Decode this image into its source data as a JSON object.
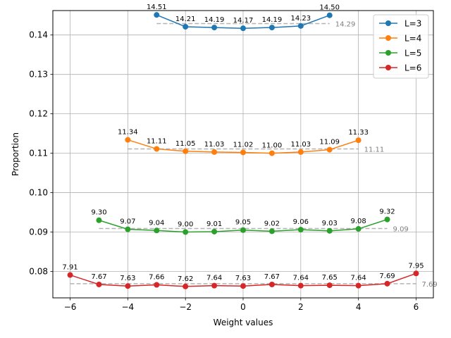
{
  "chart_data": {
    "type": "line",
    "title": "",
    "xlabel": "Weight values",
    "ylabel": "Proportion",
    "xlim": [
      -6.6,
      6.6
    ],
    "ylim": [
      0.0733,
      0.1462
    ],
    "xticks": [
      -6,
      -4,
      -2,
      0,
      2,
      4,
      6
    ],
    "xtick_labels": [
      "−6",
      "−4",
      "−2",
      "0",
      "2",
      "4",
      "6"
    ],
    "yticks": [
      0.08,
      0.09,
      0.1,
      0.11,
      0.12,
      0.13,
      0.14
    ],
    "ytick_labels": [
      "0.08",
      "0.09",
      "0.10",
      "0.11",
      "0.12",
      "0.13",
      "0.14"
    ],
    "grid": true,
    "legend_position": "top-right",
    "series": [
      {
        "name": "L=3",
        "color": "#1f77b4",
        "x": [
          -3,
          -2,
          -1,
          0,
          1,
          2,
          3
        ],
        "y": [
          0.1451,
          0.1421,
          0.1419,
          0.1417,
          0.1419,
          0.1423,
          0.145
        ],
        "point_labels": [
          "14.51",
          "14.21",
          "14.19",
          "14.17",
          "14.19",
          "14.23",
          "14.50"
        ],
        "mean": 0.1429,
        "mean_label": "14.29"
      },
      {
        "name": "L=4",
        "color": "#ff7f0e",
        "x": [
          -4,
          -3,
          -2,
          -1,
          0,
          1,
          2,
          3,
          4
        ],
        "y": [
          0.1134,
          0.1111,
          0.1105,
          0.1103,
          0.1102,
          0.11,
          0.1103,
          0.1109,
          0.1133
        ],
        "point_labels": [
          "11.34",
          "11.11",
          "11.05",
          "11.03",
          "11.02",
          "11.00",
          "11.03",
          "11.09",
          "11.33"
        ],
        "mean": 0.1111,
        "mean_label": "11.11"
      },
      {
        "name": "L=5",
        "color": "#2ca02c",
        "x": [
          -5,
          -4,
          -3,
          -2,
          -1,
          0,
          1,
          2,
          3,
          4,
          5
        ],
        "y": [
          0.093,
          0.0907,
          0.0904,
          0.09,
          0.0901,
          0.0905,
          0.0902,
          0.0906,
          0.0903,
          0.0908,
          0.0932
        ],
        "point_labels": [
          "9.30",
          "9.07",
          "9.04",
          "9.00",
          "9.01",
          "9.05",
          "9.02",
          "9.06",
          "9.03",
          "9.08",
          "9.32"
        ],
        "mean": 0.0909,
        "mean_label": "9.09"
      },
      {
        "name": "L=6",
        "color": "#d62728",
        "x": [
          -6,
          -5,
          -4,
          -3,
          -2,
          -1,
          0,
          1,
          2,
          3,
          4,
          5,
          6
        ],
        "y": [
          0.0791,
          0.0767,
          0.0763,
          0.0766,
          0.0762,
          0.0764,
          0.0763,
          0.0767,
          0.0764,
          0.0765,
          0.0764,
          0.0769,
          0.0795
        ],
        "point_labels": [
          "7.91",
          "7.67",
          "7.63",
          "7.66",
          "7.62",
          "7.64",
          "7.63",
          "7.67",
          "7.64",
          "7.65",
          "7.64",
          "7.69",
          "7.95"
        ],
        "mean": 0.0769,
        "mean_label": "7.69"
      }
    ]
  }
}
